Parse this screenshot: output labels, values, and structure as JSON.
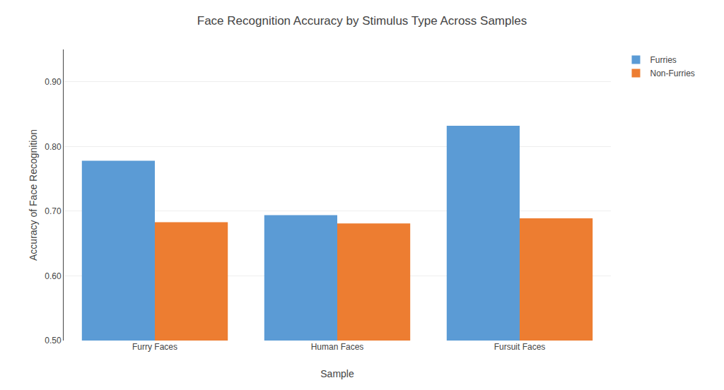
{
  "chart_data": {
    "type": "bar",
    "title": "Face Recognition Accuracy by Stimulus Type Across Samples",
    "xlabel": "Sample",
    "ylabel": "Accuracy of Face Recognition",
    "categories": [
      "Furry Faces",
      "Human Faces",
      "Fursuit Faces"
    ],
    "series": [
      {
        "name": "Furries",
        "color": "#5B9BD5",
        "values": [
          0.778,
          0.694,
          0.832
        ]
      },
      {
        "name": "Non-Furries",
        "color": "#ED7D31",
        "values": [
          0.683,
          0.681,
          0.689
        ]
      }
    ],
    "ylim": [
      0.5,
      0.95
    ],
    "yticks": [
      {
        "value": 0.5,
        "label": "0.50"
      },
      {
        "value": 0.6,
        "label": "0.60"
      },
      {
        "value": 0.7,
        "label": "0.70"
      },
      {
        "value": 0.8,
        "label": "0.80"
      },
      {
        "value": 0.9,
        "label": "0.90"
      }
    ],
    "grid": true,
    "legend": "right"
  }
}
